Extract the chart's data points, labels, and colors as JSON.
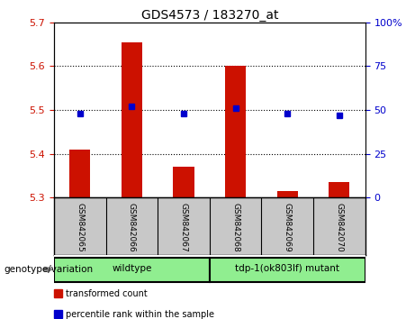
{
  "title": "GDS4573 / 183270_at",
  "samples": [
    "GSM842065",
    "GSM842066",
    "GSM842067",
    "GSM842068",
    "GSM842069",
    "GSM842070"
  ],
  "transformed_counts": [
    5.41,
    5.655,
    5.37,
    5.6,
    5.315,
    5.335
  ],
  "percentile_ranks": [
    48,
    52,
    48,
    51,
    48,
    47
  ],
  "ylim_left": [
    5.3,
    5.7
  ],
  "ylim_right": [
    0,
    100
  ],
  "yticks_left": [
    5.3,
    5.4,
    5.5,
    5.6,
    5.7
  ],
  "yticks_right": [
    0,
    25,
    50,
    75,
    100
  ],
  "ytick_right_labels": [
    "0",
    "25",
    "50",
    "75",
    "100%"
  ],
  "bar_color": "#cc1100",
  "dot_color": "#0000cc",
  "group_label": "genotype/variation",
  "groups": [
    {
      "label": "wildtype",
      "samples": [
        0,
        1,
        2
      ],
      "color": "#90ee90"
    },
    {
      "label": "tdp-1(ok803lf) mutant",
      "samples": [
        3,
        4,
        5
      ],
      "color": "#90ee90"
    }
  ],
  "legend_items": [
    {
      "label": "transformed count",
      "color": "#cc1100"
    },
    {
      "label": "percentile rank within the sample",
      "color": "#0000cc"
    }
  ],
  "background_samples": "#c8c8c8",
  "tick_color_left": "#cc1100",
  "tick_color_right": "#0000cc",
  "grid_values": [
    5.4,
    5.5,
    5.6
  ]
}
